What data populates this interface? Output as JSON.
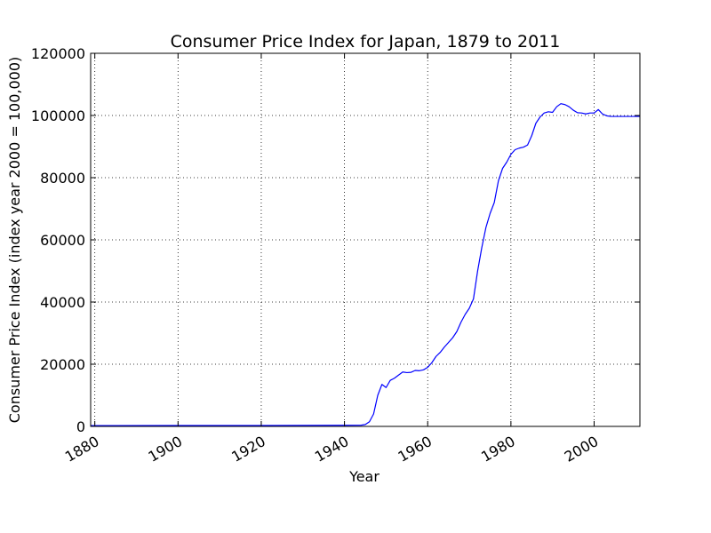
{
  "chart_data": {
    "type": "line",
    "title": "Consumer Price Index for Japan, 1879 to 2011",
    "xlabel": "Year",
    "ylabel": "Consumer Price Index (index year 2000 = 100,000)",
    "xlim": [
      1879,
      2011
    ],
    "ylim": [
      0,
      120000
    ],
    "x_ticks": [
      1880,
      1900,
      1920,
      1940,
      1960,
      1980,
      2000
    ],
    "y_ticks": [
      0,
      20000,
      40000,
      60000,
      80000,
      100000,
      120000
    ],
    "grid": true,
    "legend": "none",
    "series": [
      {
        "color": "#0000ff",
        "points": [
          [
            1879,
            250
          ],
          [
            1900,
            300
          ],
          [
            1920,
            300
          ],
          [
            1940,
            350
          ],
          [
            1944,
            400
          ],
          [
            1945,
            600
          ],
          [
            1946,
            1500
          ],
          [
            1947,
            4000
          ],
          [
            1948,
            10000
          ],
          [
            1949,
            13500
          ],
          [
            1950,
            12500
          ],
          [
            1951,
            14800
          ],
          [
            1952,
            15500
          ],
          [
            1953,
            16500
          ],
          [
            1954,
            17500
          ],
          [
            1955,
            17300
          ],
          [
            1956,
            17400
          ],
          [
            1957,
            18000
          ],
          [
            1958,
            17900
          ],
          [
            1959,
            18200
          ],
          [
            1960,
            19000
          ],
          [
            1961,
            20500
          ],
          [
            1962,
            22500
          ],
          [
            1963,
            23800
          ],
          [
            1964,
            25500
          ],
          [
            1965,
            27000
          ],
          [
            1966,
            28500
          ],
          [
            1967,
            30500
          ],
          [
            1968,
            33500
          ],
          [
            1969,
            36000
          ],
          [
            1970,
            38000
          ],
          [
            1971,
            41000
          ],
          [
            1972,
            50000
          ],
          [
            1973,
            57500
          ],
          [
            1974,
            64000
          ],
          [
            1975,
            68500
          ],
          [
            1976,
            72000
          ],
          [
            1977,
            79000
          ],
          [
            1978,
            83000
          ],
          [
            1979,
            85000
          ],
          [
            1980,
            87500
          ],
          [
            1981,
            89000
          ],
          [
            1982,
            89500
          ],
          [
            1983,
            89800
          ],
          [
            1984,
            90500
          ],
          [
            1985,
            93500
          ],
          [
            1986,
            97500
          ],
          [
            1987,
            99500
          ],
          [
            1988,
            100800
          ],
          [
            1989,
            101200
          ],
          [
            1990,
            101000
          ],
          [
            1991,
            102800
          ],
          [
            1992,
            103800
          ],
          [
            1993,
            103500
          ],
          [
            1994,
            102800
          ],
          [
            1995,
            101700
          ],
          [
            1996,
            100900
          ],
          [
            1997,
            100800
          ],
          [
            1998,
            100500
          ],
          [
            1999,
            100800
          ],
          [
            2000,
            100800
          ],
          [
            2001,
            101900
          ],
          [
            2002,
            100500
          ],
          [
            2003,
            99900
          ],
          [
            2004,
            99700
          ],
          [
            2011,
            99700
          ]
        ]
      }
    ]
  }
}
